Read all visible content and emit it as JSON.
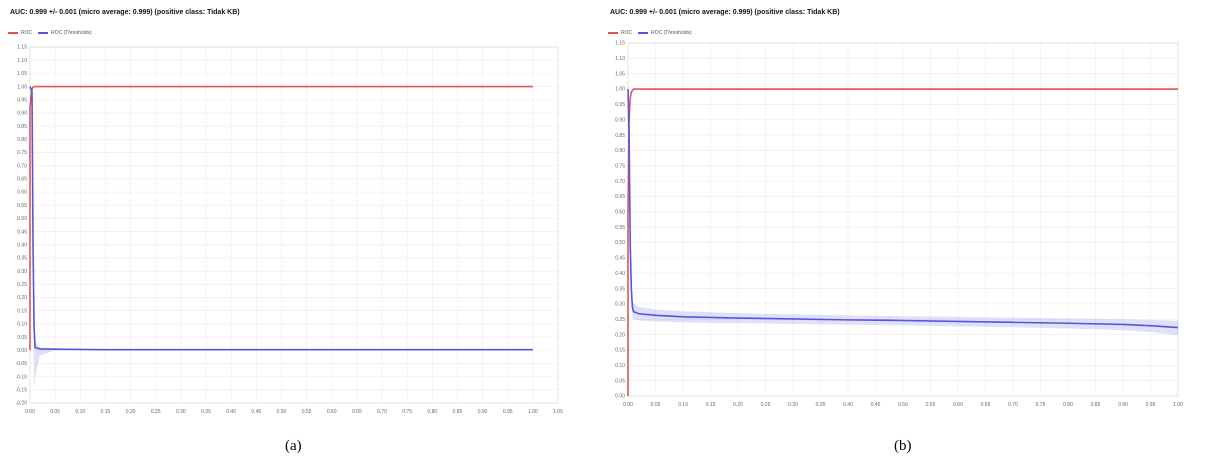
{
  "panels": [
    {
      "title": "AUC: 0.999 +/- 0.001 (micro average: 0.999) (positive class: Tidak KB)",
      "caption": "(a)",
      "legend": [
        {
          "label": "ROC",
          "color": "#e05555"
        },
        {
          "label": "ROC (Thresholds)",
          "color": "#5555e0"
        }
      ]
    },
    {
      "title": "AUC: 0.999 +/- 0.001 (micro average: 0.999) (positive class: Tidak KB)",
      "caption": "(b)",
      "legend": [
        {
          "label": "ROC",
          "color": "#e05555"
        },
        {
          "label": "ROC (Thresholds)",
          "color": "#5555e0"
        }
      ]
    }
  ],
  "chart_data": [
    {
      "type": "line",
      "title": "AUC: 0.999 +/- 0.001 (micro average: 0.999) (positive class: Tidak KB)",
      "xlabel": "",
      "ylabel": "",
      "xlim": [
        0,
        1.05
      ],
      "ylim": [
        -0.2,
        1.15
      ],
      "xticks": [
        "0.00",
        "0.05",
        "0.10",
        "0.15",
        "0.20",
        "0.25",
        "0.30",
        "0.35",
        "0.40",
        "0.45",
        "0.50",
        "0.55",
        "0.60",
        "0.65",
        "0.70",
        "0.75",
        "0.80",
        "0.85",
        "0.90",
        "0.95",
        "1.00",
        "1.05"
      ],
      "yticks": [
        "-0.20",
        "-0.15",
        "-0.10",
        "-0.05",
        "0.00",
        "0.05",
        "0.10",
        "0.15",
        "0.20",
        "0.25",
        "0.30",
        "0.35",
        "0.40",
        "0.45",
        "0.50",
        "0.55",
        "0.60",
        "0.65",
        "0.70",
        "0.75",
        "0.80",
        "0.85",
        "0.90",
        "0.95",
        "1.00",
        "1.05",
        "1.10",
        "1.15"
      ],
      "grid": true,
      "legend_position": "top-left",
      "series": [
        {
          "name": "ROC",
          "color": "#e05555",
          "x": [
            0.0,
            0.0,
            0.003,
            0.005,
            0.008,
            1.0
          ],
          "y": [
            0.0,
            0.92,
            0.98,
            0.995,
            1.0,
            1.0
          ]
        },
        {
          "name": "ROC (Thresholds)",
          "color": "#5555e0",
          "x": [
            0.0,
            0.004,
            0.006,
            0.008,
            0.01,
            0.02,
            0.05,
            0.1,
            0.15,
            0.3,
            0.5,
            0.7,
            0.9,
            1.0
          ],
          "y": [
            1.0,
            0.98,
            0.4,
            0.1,
            0.01,
            0.005,
            0.004,
            0.003,
            0.002,
            0.002,
            0.002,
            0.002,
            0.002,
            0.002
          ],
          "band_upper": [
            1.0,
            0.99,
            0.5,
            0.2,
            0.03,
            0.01,
            0.008,
            0.005,
            0.004,
            0.004,
            0.004,
            0.004,
            0.004,
            0.004
          ],
          "band_lower": [
            1.0,
            0.95,
            0.2,
            -0.15,
            -0.1,
            -0.02,
            0.0,
            0.001,
            0.0,
            0.0,
            0.0,
            0.0,
            0.0,
            0.0
          ]
        }
      ]
    },
    {
      "type": "line",
      "title": "AUC: 0.999 +/- 0.001 (micro average: 0.999) (positive class: Tidak KB)",
      "xlabel": "",
      "ylabel": "",
      "xlim": [
        0,
        1.0
      ],
      "ylim": [
        0.0,
        1.15
      ],
      "xticks": [
        "0.00",
        "0.05",
        "0.10",
        "0.15",
        "0.20",
        "0.25",
        "0.30",
        "0.35",
        "0.40",
        "0.45",
        "0.50",
        "0.55",
        "0.60",
        "0.65",
        "0.70",
        "0.75",
        "0.80",
        "0.85",
        "0.90",
        "0.95",
        "1.00"
      ],
      "yticks": [
        "0.00",
        "0.05",
        "0.10",
        "0.15",
        "0.20",
        "0.25",
        "0.30",
        "0.35",
        "0.40",
        "0.45",
        "0.50",
        "0.55",
        "0.60",
        "0.65",
        "0.70",
        "0.75",
        "0.80",
        "0.85",
        "0.90",
        "0.95",
        "1.00",
        "1.05",
        "1.10",
        "1.15"
      ],
      "grid": true,
      "legend_position": "top-left",
      "series": [
        {
          "name": "ROC",
          "color": "#e05555",
          "x": [
            0.0,
            0.0,
            0.002,
            0.004,
            0.006,
            0.01,
            1.0
          ],
          "y": [
            0.0,
            0.6,
            0.9,
            0.97,
            0.99,
            1.0,
            1.0
          ]
        },
        {
          "name": "ROC (Thresholds)",
          "color": "#5555e0",
          "x": [
            0.0,
            0.002,
            0.004,
            0.006,
            0.008,
            0.01,
            0.02,
            0.05,
            0.1,
            0.2,
            0.3,
            0.4,
            0.5,
            0.6,
            0.7,
            0.8,
            0.9,
            0.95,
            1.0
          ],
          "y": [
            1.0,
            0.85,
            0.5,
            0.35,
            0.29,
            0.275,
            0.268,
            0.263,
            0.258,
            0.254,
            0.251,
            0.248,
            0.246,
            0.243,
            0.24,
            0.237,
            0.233,
            0.229,
            0.223
          ],
          "band_upper": [
            1.0,
            0.88,
            0.55,
            0.4,
            0.32,
            0.3,
            0.29,
            0.282,
            0.276,
            0.27,
            0.266,
            0.263,
            0.26,
            0.258,
            0.255,
            0.253,
            0.25,
            0.248,
            0.245
          ],
          "band_lower": [
            1.0,
            0.8,
            0.45,
            0.31,
            0.26,
            0.25,
            0.246,
            0.243,
            0.24,
            0.237,
            0.235,
            0.232,
            0.23,
            0.227,
            0.224,
            0.22,
            0.214,
            0.208,
            0.198
          ]
        }
      ]
    }
  ]
}
